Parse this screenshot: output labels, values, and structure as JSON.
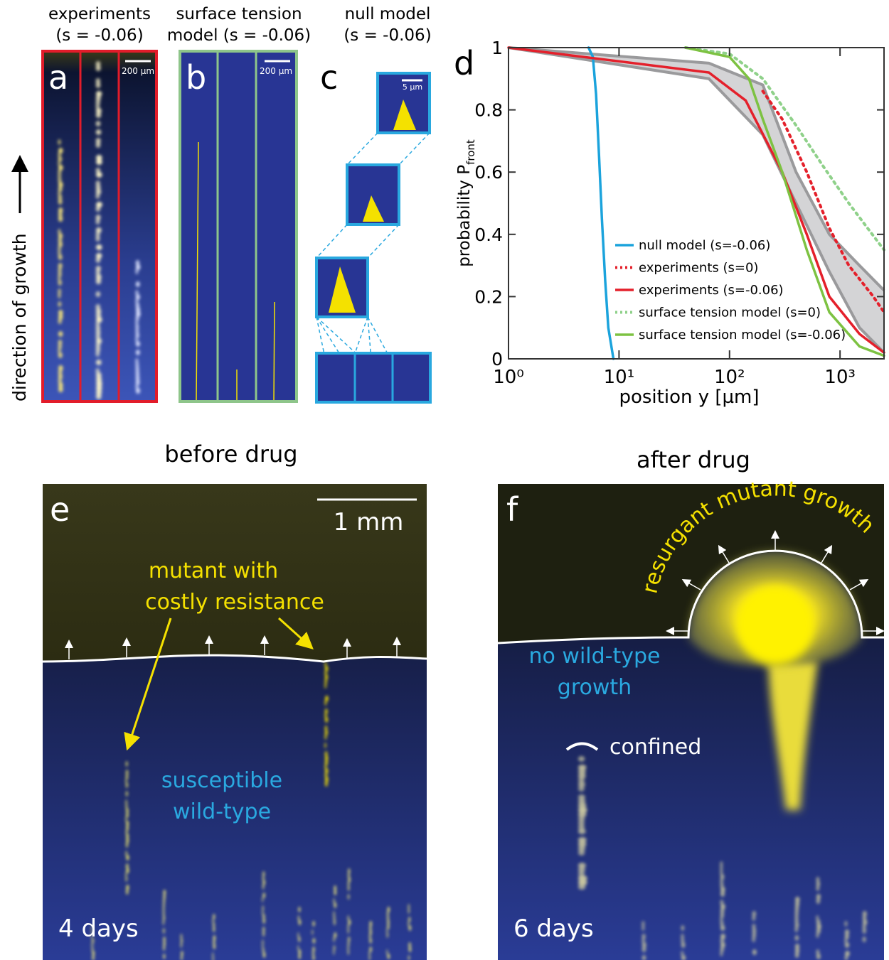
{
  "panel_a": {
    "label": "a",
    "title_lines": [
      "experiments",
      "(s = -0.06)"
    ],
    "scale": "200 µm"
  },
  "panel_b": {
    "label": "b",
    "title_lines": [
      "surface tension",
      "model (s = -0.06)"
    ],
    "scale": "200 µm"
  },
  "panel_c": {
    "label": "c",
    "title_lines": [
      "null model",
      "(s = -0.06)"
    ],
    "scale": "5 µm"
  },
  "side_label": "direction of growth",
  "panel_d": {
    "label": "d"
  },
  "chart_data": {
    "type": "line",
    "xlabel": "position y [µm]",
    "ylabel": "probability P",
    "ylabel_sub": "front",
    "xscale": "log",
    "xlim": [
      1,
      2500
    ],
    "ylim": [
      0,
      1
    ],
    "xticks": [
      {
        "value": 1,
        "label": "10⁰"
      },
      {
        "value": 10,
        "label": "10¹"
      },
      {
        "value": 100,
        "label": "10²"
      },
      {
        "value": 1000,
        "label": "10³"
      }
    ],
    "yticks": [
      0,
      0.2,
      0.4,
      0.6,
      0.8,
      1
    ],
    "legend": "lower center",
    "band": {
      "color": "#d4d4d6",
      "edge_color": "#9a9a9c",
      "x": [
        1,
        65,
        200,
        400,
        800,
        1500,
        2500
      ],
      "upper": [
        1,
        0.95,
        0.88,
        0.6,
        0.4,
        0.3,
        0.22
      ],
      "lower": [
        1,
        0.9,
        0.72,
        0.5,
        0.28,
        0.1,
        0.02
      ]
    },
    "series": [
      {
        "name": "null model (s=-0.06)",
        "color": "#1ba3dc",
        "style": "solid",
        "x": [
          5.3,
          5.8,
          6.2,
          6.6,
          7.0,
          7.5,
          8.0,
          8.9
        ],
        "values": [
          1,
          0.97,
          0.85,
          0.65,
          0.45,
          0.25,
          0.1,
          0
        ]
      },
      {
        "name": "experiments (s=0)",
        "color": "#e4202b",
        "style": "dotted",
        "x": [
          200,
          300,
          500,
          800,
          1200,
          2000,
          2500
        ],
        "values": [
          0.86,
          0.77,
          0.6,
          0.42,
          0.3,
          0.2,
          0.15
        ]
      },
      {
        "name": "experiments (s=-0.06)",
        "color": "#e4202b",
        "style": "solid",
        "x": [
          1,
          65,
          140,
          300,
          500,
          800,
          1500,
          2500
        ],
        "values": [
          1,
          0.92,
          0.83,
          0.6,
          0.4,
          0.2,
          0.08,
          0.02
        ]
      },
      {
        "name": "surface tension model (s=0)",
        "color": "#8fd18a",
        "style": "dotted",
        "x": [
          40,
          100,
          200,
          400,
          700,
          1200,
          2500
        ],
        "values": [
          1,
          0.98,
          0.9,
          0.75,
          0.62,
          0.5,
          0.35
        ]
      },
      {
        "name": "surface tension model (s=-0.06)",
        "color": "#7dc242",
        "style": "solid",
        "x": [
          40,
          100,
          150,
          200,
          300,
          500,
          800,
          1500,
          2500
        ],
        "values": [
          1,
          0.97,
          0.9,
          0.77,
          0.6,
          0.35,
          0.15,
          0.04,
          0.01
        ]
      }
    ]
  },
  "panel_e": {
    "title": "before drug",
    "label": "e",
    "scale": "1 mm",
    "mutant_lines": [
      "mutant with",
      "costly resistance"
    ],
    "wildtype_lines": [
      "susceptible",
      "wild-type"
    ],
    "time": "4 days"
  },
  "panel_f": {
    "title": "after drug",
    "label": "f",
    "growth": "resurgant mutant growth",
    "wildtype_lines": [
      "no wild-type",
      "growth"
    ],
    "confined": "confined",
    "time": "6 days"
  }
}
